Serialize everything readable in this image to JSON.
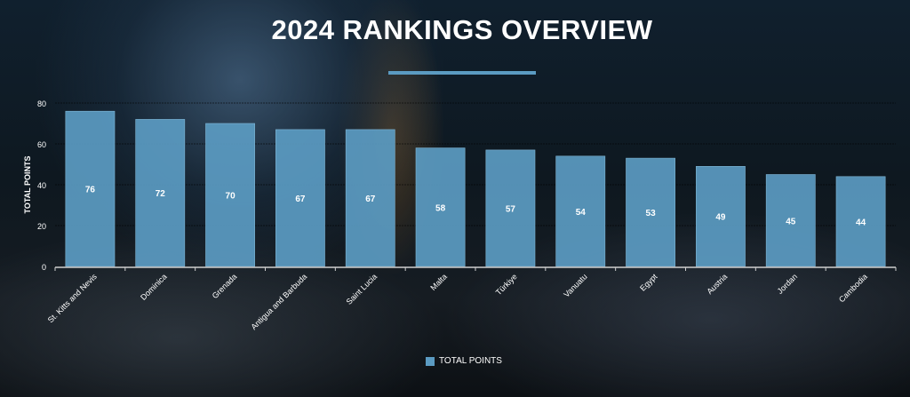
{
  "header": {
    "title": "2024 RANKINGS OVERVIEW"
  },
  "colors": {
    "bar": "#5b9bc2",
    "accent": "#5b9bc2",
    "text": "#ffffff"
  },
  "chart_data": {
    "type": "bar",
    "title": "2024 RANKINGS OVERVIEW",
    "xlabel": "",
    "ylabel": "TOTAL POINTS",
    "ylim": [
      0,
      80
    ],
    "yticks": [
      0,
      20,
      40,
      60,
      80
    ],
    "grid": true,
    "legend": "bottom",
    "categories": [
      "St. Kitts and Nevis",
      "Dominica",
      "Grenada",
      "Antigua and Barbuda",
      "Saint Lucia",
      "Malta",
      "Türkiye",
      "Vanuatu",
      "Egypt",
      "Austria",
      "Jordan",
      "Cambodia"
    ],
    "series": [
      {
        "name": "TOTAL POINTS",
        "values": [
          76,
          72,
          70,
          67,
          67,
          58,
          57,
          54,
          53,
          49,
          45,
          44
        ]
      }
    ],
    "data_labels": true
  }
}
